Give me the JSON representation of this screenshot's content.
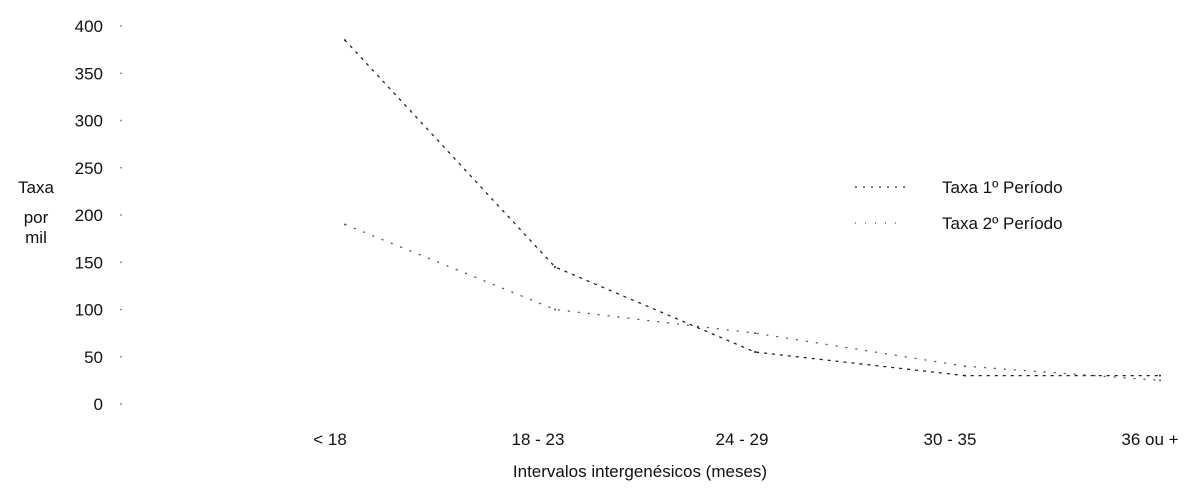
{
  "chart_data": {
    "type": "line",
    "title": "",
    "xlabel": "Intervalos intergenésicos (meses)",
    "ylabel_lines": [
      "Taxa",
      "por",
      "mil"
    ],
    "categories": [
      "< 18",
      "18 - 23",
      "24 - 29",
      "30 - 35",
      "36 ou +"
    ],
    "yticks": [
      "400",
      "350",
      "300",
      "250",
      "200",
      "150",
      "100",
      "50",
      "0"
    ],
    "ylim": [
      0,
      400
    ],
    "grid": false,
    "legend_position": "right",
    "series": [
      {
        "name": "Taxa 1º Período",
        "values": [
          385,
          145,
          55,
          30,
          30
        ],
        "color": "#222222",
        "dash": "2 6"
      },
      {
        "name": "Taxa 2º Período",
        "values": [
          190,
          100,
          75,
          40,
          25
        ],
        "color": "#555555",
        "dash": "1 9"
      }
    ]
  }
}
